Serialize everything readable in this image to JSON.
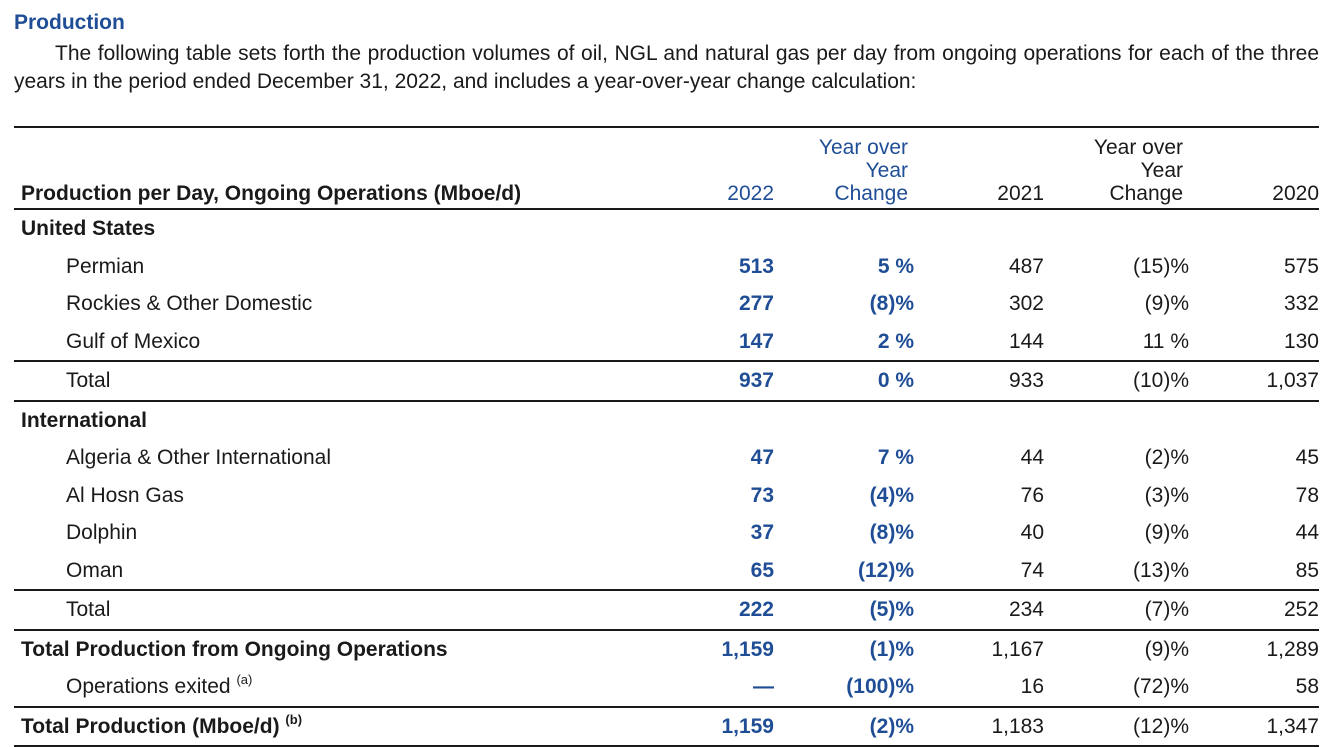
{
  "section": {
    "title": "Production",
    "intro": "The following table sets forth the production volumes of oil, NGL and natural gas per day from ongoing operations for each of the three years in the period ended December 31, 2022, and includes a year-over-year change calculation:"
  },
  "table": {
    "header": {
      "label": "Production per Day, Ongoing Operations (Mboe/d)",
      "col_2022": "2022",
      "col_yoy_2022_line1": "Year over",
      "col_yoy_2022_line2": "Year",
      "col_yoy_2022_line3": "Change",
      "col_2021": "2021",
      "col_yoy_2021_line1": "Year over",
      "col_yoy_2021_line2": "Year",
      "col_yoy_2021_line3": "Change",
      "col_2020": "2020"
    },
    "groups": {
      "us": "United States",
      "intl": "International"
    },
    "rows": {
      "permian": {
        "label": "Permian",
        "v2022": "513",
        "yoy2022": "5 %",
        "v2021": "487",
        "yoy2021": "(15)%",
        "v2020": "575"
      },
      "rockies": {
        "label": "Rockies & Other Domestic",
        "v2022": "277",
        "yoy2022": "(8)%",
        "v2021": "302",
        "yoy2021": "(9)%",
        "v2020": "332"
      },
      "gom": {
        "label": "Gulf of Mexico",
        "v2022": "147",
        "yoy2022": "2 %",
        "v2021": "144",
        "yoy2021": "11 %",
        "v2020": "130"
      },
      "us_total": {
        "label": "Total",
        "v2022": "937",
        "yoy2022": "0 %",
        "v2021": "933",
        "yoy2021": "(10)%",
        "v2020": "1,037"
      },
      "algeria": {
        "label": "Algeria & Other International",
        "v2022": "47",
        "yoy2022": "7 %",
        "v2021": "44",
        "yoy2021": "(2)%",
        "v2020": "45"
      },
      "alhosn": {
        "label": "Al Hosn Gas",
        "v2022": "73",
        "yoy2022": "(4)%",
        "v2021": "76",
        "yoy2021": "(3)%",
        "v2020": "78"
      },
      "dolphin": {
        "label": "Dolphin",
        "v2022": "37",
        "yoy2022": "(8)%",
        "v2021": "40",
        "yoy2021": "(9)%",
        "v2020": "44"
      },
      "oman": {
        "label": "Oman",
        "v2022": "65",
        "yoy2022": "(12)%",
        "v2021": "74",
        "yoy2021": "(13)%",
        "v2020": "85"
      },
      "intl_total": {
        "label": "Total",
        "v2022": "222",
        "yoy2022": "(5)%",
        "v2021": "234",
        "yoy2021": "(7)%",
        "v2020": "252"
      },
      "ongoing_total": {
        "label": "Total Production from Ongoing Operations",
        "v2022": "1,159",
        "yoy2022": "(1)%",
        "v2021": "1,167",
        "yoy2021": "(9)%",
        "v2020": "1,289"
      },
      "exited": {
        "label": "Operations exited",
        "footnote": "(a)",
        "v2022": "—",
        "yoy2022": "(100)%",
        "v2021": "16",
        "yoy2021": "(72)%",
        "v2020": "58"
      },
      "grand_total": {
        "label": "Total Production (Mboe/d)",
        "footnote": "(b)",
        "v2022": "1,159",
        "yoy2022": "(2)%",
        "v2021": "1,183",
        "yoy2021": "(12)%",
        "v2020": "1,347"
      }
    }
  },
  "colors": {
    "accent_blue": "#1f4e96",
    "text": "#1a1a1a"
  }
}
